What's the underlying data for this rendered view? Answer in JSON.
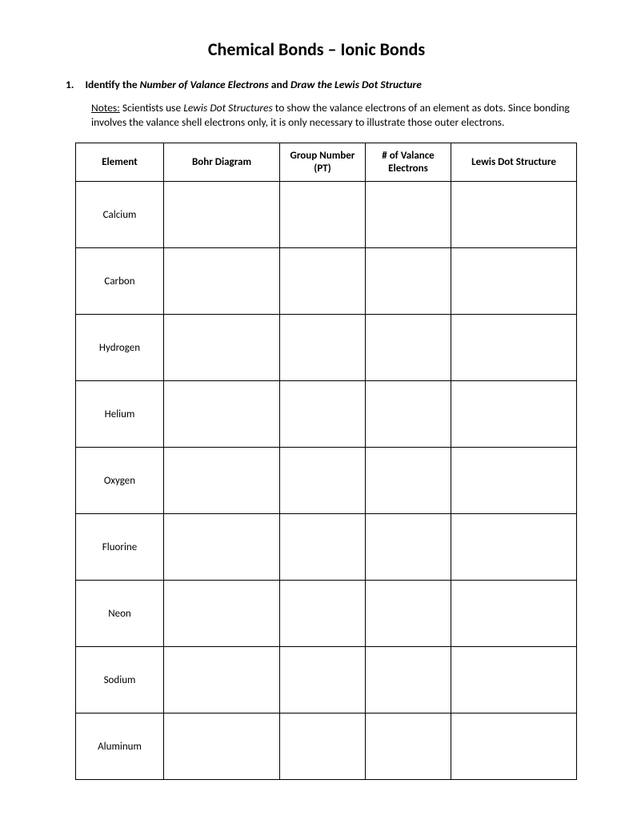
{
  "title": "Chemical Bonds – Ionic Bonds",
  "question": {
    "number": "1.",
    "prefix": "Identify the ",
    "italic1": "Number of Valance Electrons",
    "middle": " and ",
    "italic2": "Draw the Lewis Dot Structure"
  },
  "notes": {
    "label": "Notes:",
    "part1": " Scientists use ",
    "italic": "Lewis Dot Structures",
    "part2": " to show the valance electrons of an element as dots. Since bonding involves the valance shell electrons only, it is only necessary to illustrate those outer electrons."
  },
  "table": {
    "headers": {
      "element": "Element",
      "bohr": "Bohr Diagram",
      "group": "Group Number (PT)",
      "valance": "# of Valance Electrons",
      "lewis": "Lewis Dot Structure"
    },
    "rows": [
      {
        "element": "Calcium",
        "bohr": "",
        "group": "",
        "valance": "",
        "lewis": ""
      },
      {
        "element": "Carbon",
        "bohr": "",
        "group": "",
        "valance": "",
        "lewis": ""
      },
      {
        "element": "Hydrogen",
        "bohr": "",
        "group": "",
        "valance": "",
        "lewis": ""
      },
      {
        "element": "Helium",
        "bohr": "",
        "group": "",
        "valance": "",
        "lewis": ""
      },
      {
        "element": "Oxygen",
        "bohr": "",
        "group": "",
        "valance": "",
        "lewis": ""
      },
      {
        "element": "Fluorine",
        "bohr": "",
        "group": "",
        "valance": "",
        "lewis": ""
      },
      {
        "element": "Neon",
        "bohr": "",
        "group": "",
        "valance": "",
        "lewis": ""
      },
      {
        "element": "Sodium",
        "bohr": "",
        "group": "",
        "valance": "",
        "lewis": ""
      },
      {
        "element": "Aluminum",
        "bohr": "",
        "group": "",
        "valance": "",
        "lewis": ""
      }
    ]
  },
  "styling": {
    "page_bg": "#ffffff",
    "text_color": "#000000",
    "border_color": "#000000",
    "title_fontsize": 22,
    "body_fontsize": 13.5,
    "table_fontsize": 13,
    "header_row_height": 48,
    "data_row_height": 83,
    "column_widths": {
      "element": 110,
      "bohr": 145,
      "group": 107,
      "valance": 107,
      "lewis": 157
    }
  }
}
